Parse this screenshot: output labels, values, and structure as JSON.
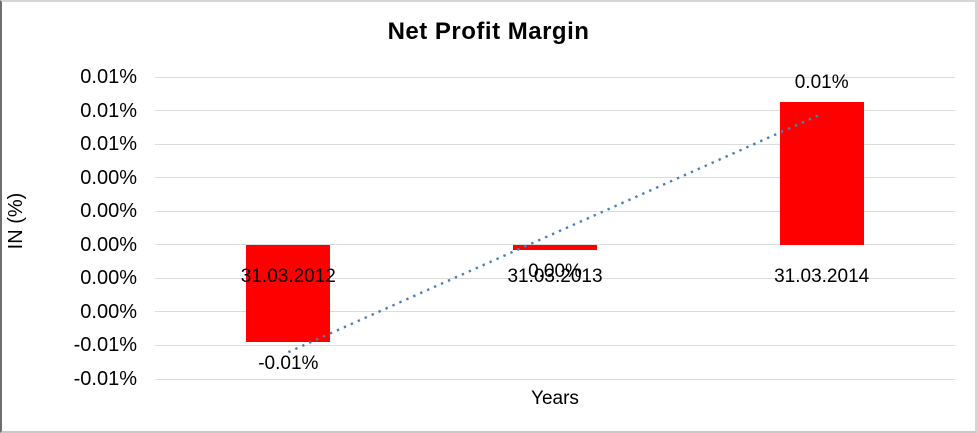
{
  "chart_data": {
    "type": "bar",
    "title": "Net Profit Margin",
    "xlabel": "Years",
    "ylabel": "IN (%)",
    "categories": [
      "31.03.2012",
      "31.03.2013",
      "31.03.2014"
    ],
    "values": [
      -0.0058,
      -0.0003,
      0.0085
    ],
    "data_labels": [
      "-0.01%",
      "0.00%",
      "0.01%"
    ],
    "bar_color": "#ff0000",
    "ylim": [
      -0.008,
      0.01
    ],
    "ytick_step": 0.002,
    "ytick_labels": [
      "0.01%",
      "0.01%",
      "0.01%",
      "0.00%",
      "0.00%",
      "0.00%",
      "0.00%",
      "0.00%",
      "-0.01%",
      "-0.01%"
    ],
    "grid": true,
    "gridline_color": "#dcdcdc",
    "legend": "none",
    "trendline": {
      "start_value": -0.0064,
      "end_value": 0.0078,
      "color": "#4a7eb8",
      "style": "dotted"
    }
  }
}
